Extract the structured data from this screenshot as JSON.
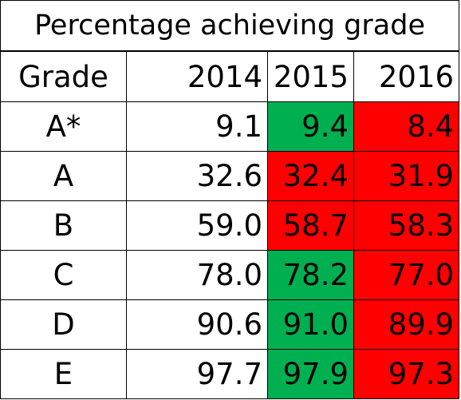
{
  "chart_data": {
    "type": "table",
    "title": "Percentage achieving grade",
    "header": {
      "grade": "Grade",
      "years": [
        "2014",
        "2015",
        "2016"
      ]
    },
    "rows": [
      {
        "grade": "A*",
        "values": [
          "9.1",
          "9.4",
          "8.4"
        ],
        "colors": [
          "#ffffff",
          "#00b050",
          "#ff0000"
        ]
      },
      {
        "grade": "A",
        "values": [
          "32.6",
          "32.4",
          "31.9"
        ],
        "colors": [
          "#ffffff",
          "#ff0000",
          "#ff0000"
        ]
      },
      {
        "grade": "B",
        "values": [
          "59.0",
          "58.7",
          "58.3"
        ],
        "colors": [
          "#ffffff",
          "#ff0000",
          "#ff0000"
        ]
      },
      {
        "grade": "C",
        "values": [
          "78.0",
          "78.2",
          "77.0"
        ],
        "colors": [
          "#ffffff",
          "#00b050",
          "#ff0000"
        ]
      },
      {
        "grade": "D",
        "values": [
          "90.6",
          "91.0",
          "89.9"
        ],
        "colors": [
          "#ffffff",
          "#00b050",
          "#ff0000"
        ]
      },
      {
        "grade": "E",
        "values": [
          "97.7",
          "97.9",
          "97.3"
        ],
        "colors": [
          "#ffffff",
          "#00b050",
          "#ff0000"
        ]
      }
    ]
  }
}
